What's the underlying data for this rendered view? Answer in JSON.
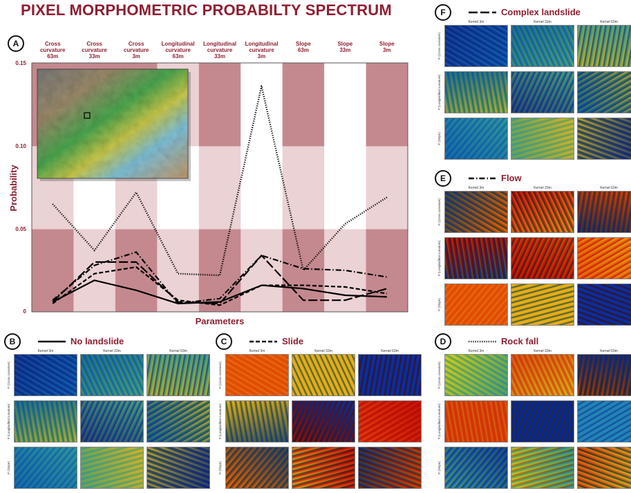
{
  "title": "PIXEL MORPHOMETRIC PROBABILTY SPECTRUM",
  "chart_data": {
    "type": "line",
    "panel_letter": "A",
    "categories": [
      [
        "Cross",
        "curvature",
        "63m"
      ],
      [
        "Cross",
        "curvature",
        "33m"
      ],
      [
        "Cross",
        "curvature",
        "3m"
      ],
      [
        "Longitudinal",
        "curvature",
        "63m"
      ],
      [
        "Longitudinal",
        "curvature",
        "33m"
      ],
      [
        "Longitudinal",
        "curvature",
        "3m"
      ],
      [
        "Slope",
        "63m"
      ],
      [
        "Slope",
        "33m"
      ],
      [
        "Slope",
        "3m"
      ]
    ],
    "xlabel": "Parameters",
    "ylabel": "Probability",
    "ylim": [
      0,
      0.15
    ],
    "yticks": [
      "0",
      "0.05",
      "0.10",
      "0.15"
    ],
    "series": [
      {
        "name": "No landslide",
        "style": "solid",
        "values": [
          0.006,
          0.019,
          0.013,
          0.005,
          0.006,
          0.016,
          0.014,
          0.01,
          0.009
        ]
      },
      {
        "name": "Slide",
        "style": "dashed",
        "values": [
          0.005,
          0.023,
          0.027,
          0.007,
          0.004,
          0.016,
          0.016,
          0.015,
          0.011
        ]
      },
      {
        "name": "Rock fall",
        "style": "dotted",
        "values": [
          0.065,
          0.037,
          0.072,
          0.023,
          0.022,
          0.136,
          0.025,
          0.053,
          0.069
        ]
      },
      {
        "name": "Flow",
        "style": "dashdot",
        "values": [
          0.007,
          0.028,
          0.036,
          0.005,
          0.008,
          0.034,
          0.026,
          0.025,
          0.021
        ]
      },
      {
        "name": "Complex landslide",
        "style": "longdash",
        "values": [
          0.006,
          0.03,
          0.03,
          0.006,
          0.005,
          0.034,
          0.007,
          0.007,
          0.014
        ]
      }
    ],
    "band_colors": [
      "#c4898f",
      "#ebd2d4",
      "#ffffff"
    ]
  },
  "panels": [
    {
      "letter": "B",
      "title": "No landslide",
      "style": "solid",
      "palette": "cool"
    },
    {
      "letter": "C",
      "title": "Slide",
      "style": "dashed",
      "palette": "warm"
    },
    {
      "letter": "D",
      "title": "Rock fall",
      "style": "dotted",
      "palette": "mixed"
    },
    {
      "letter": "E",
      "title": "Flow",
      "style": "dashdot",
      "palette": "warm"
    },
    {
      "letter": "F",
      "title": "Complex landslide",
      "style": "longdash",
      "palette": "cool"
    }
  ],
  "kernels": [
    "Kernel 3m",
    "Kernel 33m",
    "Kernel 63m"
  ],
  "rows": [
    "P (Cross curvature)",
    "P (Longitudinal curvature)",
    "P (Slope)"
  ],
  "inset": {
    "icon": "terrain-map-inset"
  }
}
